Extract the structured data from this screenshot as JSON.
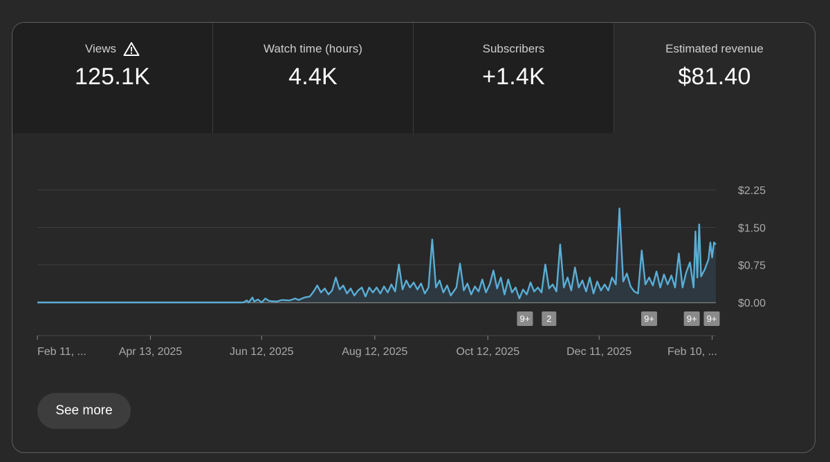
{
  "metrics": [
    {
      "label": "Views",
      "value": "125.1K",
      "icon": "warning-icon"
    },
    {
      "label": "Watch time (hours)",
      "value": "4.4K"
    },
    {
      "label": "Subscribers",
      "value": "+1.4K"
    },
    {
      "label": "Estimated revenue",
      "value": "$81.40"
    }
  ],
  "see_more_label": "See more",
  "colors": {
    "line": "#5aaed6",
    "fill": "#2f3b44",
    "grid": "#3f3f3f",
    "badge": "#8a8a8a"
  },
  "chart_data": {
    "type": "area",
    "x_start": "Feb 11, 2025",
    "x_end": "Feb 12, 2026",
    "ylim": [
      0,
      2.25
    ],
    "y_ticks": [
      {
        "value": 2.25,
        "label": "$2.25"
      },
      {
        "value": 1.5,
        "label": "$1.50"
      },
      {
        "value": 0.75,
        "label": "$0.75"
      },
      {
        "value": 0,
        "label": "$0.00"
      }
    ],
    "x_ticks": [
      {
        "date": "2025-02-11",
        "label": "Feb 11, ..."
      },
      {
        "date": "2025-04-13",
        "label": "Apr 13, 2025"
      },
      {
        "date": "2025-06-12",
        "label": "Jun 12, 2025"
      },
      {
        "date": "2025-08-12",
        "label": "Aug 12, 2025"
      },
      {
        "date": "2025-10-12",
        "label": "Oct 12, 2025"
      },
      {
        "date": "2025-12-11",
        "label": "Dec 11, 2025"
      },
      {
        "date": "2026-02-10",
        "label": "Feb 10, ..."
      }
    ],
    "points": [
      [
        "2025-02-11",
        0
      ],
      [
        "2025-06-02",
        0
      ],
      [
        "2025-06-04",
        0.04
      ],
      [
        "2025-06-05",
        0
      ],
      [
        "2025-06-07",
        0.1
      ],
      [
        "2025-06-08",
        0.02
      ],
      [
        "2025-06-10",
        0.06
      ],
      [
        "2025-06-12",
        0
      ],
      [
        "2025-06-14",
        0.08
      ],
      [
        "2025-06-16",
        0.03
      ],
      [
        "2025-06-20",
        0.02
      ],
      [
        "2025-06-23",
        0.05
      ],
      [
        "2025-06-27",
        0.04
      ],
      [
        "2025-06-30",
        0.08
      ],
      [
        "2025-07-02",
        0.05
      ],
      [
        "2025-07-05",
        0.1
      ],
      [
        "2025-07-08",
        0.12
      ],
      [
        "2025-07-10",
        0.22
      ],
      [
        "2025-07-12",
        0.34
      ],
      [
        "2025-07-14",
        0.2
      ],
      [
        "2025-07-16",
        0.28
      ],
      [
        "2025-07-18",
        0.16
      ],
      [
        "2025-07-20",
        0.24
      ],
      [
        "2025-07-22",
        0.5
      ],
      [
        "2025-07-24",
        0.26
      ],
      [
        "2025-07-26",
        0.34
      ],
      [
        "2025-07-28",
        0.18
      ],
      [
        "2025-07-30",
        0.28
      ],
      [
        "2025-08-01",
        0.14
      ],
      [
        "2025-08-03",
        0.24
      ],
      [
        "2025-08-05",
        0.3
      ],
      [
        "2025-08-07",
        0.12
      ],
      [
        "2025-08-09",
        0.3
      ],
      [
        "2025-08-11",
        0.2
      ],
      [
        "2025-08-13",
        0.3
      ],
      [
        "2025-08-15",
        0.18
      ],
      [
        "2025-08-17",
        0.32
      ],
      [
        "2025-08-19",
        0.2
      ],
      [
        "2025-08-21",
        0.36
      ],
      [
        "2025-08-23",
        0.22
      ],
      [
        "2025-08-25",
        0.76
      ],
      [
        "2025-08-27",
        0.26
      ],
      [
        "2025-08-29",
        0.44
      ],
      [
        "2025-08-31",
        0.3
      ],
      [
        "2025-09-02",
        0.4
      ],
      [
        "2025-09-04",
        0.26
      ],
      [
        "2025-09-06",
        0.38
      ],
      [
        "2025-09-08",
        0.18
      ],
      [
        "2025-09-10",
        0.3
      ],
      [
        "2025-09-12",
        1.26
      ],
      [
        "2025-09-14",
        0.3
      ],
      [
        "2025-09-16",
        0.44
      ],
      [
        "2025-09-18",
        0.2
      ],
      [
        "2025-09-20",
        0.34
      ],
      [
        "2025-09-22",
        0.14
      ],
      [
        "2025-09-25",
        0.3
      ],
      [
        "2025-09-27",
        0.78
      ],
      [
        "2025-09-29",
        0.24
      ],
      [
        "2025-10-01",
        0.38
      ],
      [
        "2025-10-03",
        0.16
      ],
      [
        "2025-10-05",
        0.32
      ],
      [
        "2025-10-07",
        0.22
      ],
      [
        "2025-10-09",
        0.46
      ],
      [
        "2025-10-11",
        0.2
      ],
      [
        "2025-10-13",
        0.36
      ],
      [
        "2025-10-15",
        0.64
      ],
      [
        "2025-10-17",
        0.28
      ],
      [
        "2025-10-19",
        0.5
      ],
      [
        "2025-10-21",
        0.16
      ],
      [
        "2025-10-23",
        0.46
      ],
      [
        "2025-10-25",
        0.2
      ],
      [
        "2025-10-27",
        0.3
      ],
      [
        "2025-10-29",
        0.08
      ],
      [
        "2025-10-31",
        0.26
      ],
      [
        "2025-11-02",
        0.16
      ],
      [
        "2025-11-04",
        0.4
      ],
      [
        "2025-11-06",
        0.22
      ],
      [
        "2025-11-08",
        0.3
      ],
      [
        "2025-11-10",
        0.2
      ],
      [
        "2025-11-12",
        0.76
      ],
      [
        "2025-11-14",
        0.28
      ],
      [
        "2025-11-16",
        0.36
      ],
      [
        "2025-11-18",
        0.22
      ],
      [
        "2025-11-20",
        1.16
      ],
      [
        "2025-11-22",
        0.3
      ],
      [
        "2025-11-24",
        0.5
      ],
      [
        "2025-11-26",
        0.24
      ],
      [
        "2025-11-28",
        0.7
      ],
      [
        "2025-11-30",
        0.3
      ],
      [
        "2025-12-02",
        0.44
      ],
      [
        "2025-12-04",
        0.22
      ],
      [
        "2025-12-06",
        0.5
      ],
      [
        "2025-12-08",
        0.18
      ],
      [
        "2025-12-10",
        0.42
      ],
      [
        "2025-12-12",
        0.24
      ],
      [
        "2025-12-14",
        0.36
      ],
      [
        "2025-12-16",
        0.24
      ],
      [
        "2025-12-18",
        0.5
      ],
      [
        "2025-12-20",
        0.36
      ],
      [
        "2025-12-22",
        1.88
      ],
      [
        "2025-12-24",
        0.42
      ],
      [
        "2025-12-26",
        0.58
      ],
      [
        "2025-12-28",
        0.32
      ],
      [
        "2025-12-30",
        0.22
      ],
      [
        "2026-01-01",
        0.18
      ],
      [
        "2026-01-03",
        1.04
      ],
      [
        "2026-01-05",
        0.36
      ],
      [
        "2026-01-07",
        0.5
      ],
      [
        "2026-01-09",
        0.34
      ],
      [
        "2026-01-11",
        0.62
      ],
      [
        "2026-01-13",
        0.3
      ],
      [
        "2026-01-15",
        0.56
      ],
      [
        "2026-01-17",
        0.36
      ],
      [
        "2026-01-19",
        0.54
      ],
      [
        "2026-01-21",
        0.3
      ],
      [
        "2026-01-23",
        0.98
      ],
      [
        "2026-01-25",
        0.3
      ],
      [
        "2026-01-27",
        0.6
      ],
      [
        "2026-01-29",
        0.8
      ],
      [
        "2026-01-31",
        0.3
      ],
      [
        "2026-02-01",
        1.42
      ],
      [
        "2026-02-02",
        0.5
      ],
      [
        "2026-02-03",
        1.56
      ],
      [
        "2026-02-04",
        0.52
      ],
      [
        "2026-02-06",
        0.66
      ],
      [
        "2026-02-08",
        0.86
      ],
      [
        "2026-02-09",
        1.2
      ],
      [
        "2026-02-10",
        0.9
      ],
      [
        "2026-02-11",
        1.2
      ],
      [
        "2026-02-12",
        1.16
      ]
    ],
    "annotations": [
      {
        "date": "2025-11-01",
        "label": "9+"
      },
      {
        "date": "2025-11-14",
        "label": "2"
      },
      {
        "date": "2026-01-07",
        "label": "9+"
      },
      {
        "date": "2026-01-30",
        "label": "9+"
      },
      {
        "date": "2026-02-11",
        "label": "9+"
      }
    ]
  }
}
